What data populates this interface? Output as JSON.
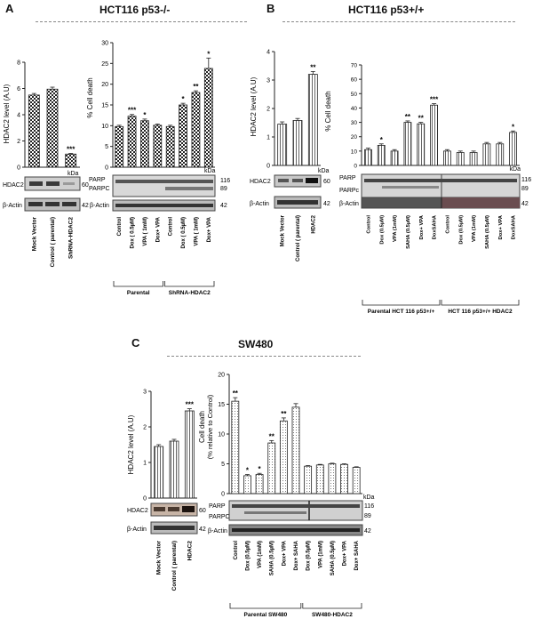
{
  "panels": {
    "A": {
      "label": "A",
      "title": "HCT116   p53-/-"
    },
    "B": {
      "label": "B",
      "title": "HCT116   p53+/+"
    },
    "C": {
      "label": "C",
      "title": "SW480"
    }
  },
  "common": {
    "kda": "kDa",
    "hdac2": "HDAC2",
    "bactin": "β-Actin",
    "parp": "PARP",
    "parpc": "PARPC",
    "parpc_b": "PARPc",
    "m60": "60",
    "m42": "42",
    "m116": "116",
    "m89": "89"
  },
  "chart_data": [
    {
      "id": "A-hdac2",
      "type": "bar",
      "ylabel": "HDAC2 level (A.U)",
      "ylim": [
        0,
        8
      ],
      "yticks": [
        "0",
        "2",
        "4",
        "6",
        "8"
      ],
      "categories": [
        "Mock Vector",
        "Control ( parental)",
        "ShRNA-HDAC2"
      ],
      "values": [
        5.5,
        5.95,
        1.0
      ],
      "errors": [
        0.12,
        0.15,
        0.05
      ],
      "annotations": [
        "",
        "",
        "***"
      ]
    },
    {
      "id": "A-death",
      "type": "bar",
      "ylabel": "% Cell death",
      "ylim": [
        0,
        30
      ],
      "yticks": [
        "0",
        "5",
        "10",
        "15",
        "20",
        "25",
        "30"
      ],
      "categories": [
        "Control",
        "Dox ( 0.5µM)",
        "VPA ( 1mM)",
        "Dox+ VPA",
        "Control",
        "Dox ( 0.5µM)",
        "VPA ( 1mM)",
        "Dox+ VPA"
      ],
      "values": [
        9.8,
        12.3,
        11.2,
        10.1,
        9.8,
        15.0,
        18.0,
        23.8
      ],
      "errors": [
        0.3,
        0.4,
        0.4,
        0.3,
        0.3,
        0.4,
        0.4,
        2.5
      ],
      "annotations": [
        "",
        "***",
        "*",
        "",
        "",
        "*",
        "**",
        "*"
      ],
      "groups": [
        "Parental",
        "ShRNA-HDAC2"
      ]
    },
    {
      "id": "B-hdac2",
      "type": "bar",
      "ylabel": "HDAC2 level (A.U)",
      "ylim": [
        0,
        4
      ],
      "yticks": [
        "0",
        "1",
        "2",
        "3",
        "4"
      ],
      "categories": [
        "Mock Vector",
        "Control ( parental)",
        "HDAC2"
      ],
      "values": [
        1.45,
        1.58,
        3.2
      ],
      "errors": [
        0.08,
        0.07,
        0.1
      ],
      "annotations": [
        "",
        "",
        "**"
      ]
    },
    {
      "id": "B-death",
      "type": "bar",
      "ylabel": "% Cell death",
      "ylim": [
        0,
        70
      ],
      "yticks": [
        "0",
        "10",
        "20",
        "30",
        "40",
        "50",
        "60",
        "70"
      ],
      "categories": [
        "Control",
        "Dox (0.5µM)",
        "VPA (1mM)",
        "SAHA (0.5µM)",
        "Dox+ VPA",
        "DoxSAHA",
        "Control",
        "Dox (0.5µM)",
        "VPA (1mM)",
        "SAHA (0.5µM)",
        "Dox+ VPA",
        "DoxSAHA"
      ],
      "values": [
        11,
        14,
        10,
        30,
        29,
        42,
        10,
        9,
        9,
        15,
        15,
        23
      ],
      "errors": [
        1,
        1,
        1,
        1,
        1,
        1,
        1,
        1,
        1,
        1,
        1,
        1
      ],
      "annotations": [
        "",
        "*",
        "",
        "**",
        "**",
        "***",
        "",
        "",
        "",
        "",
        "",
        "*"
      ],
      "groups": [
        "Parental HCT 116 p53+/+",
        "HCT 116 p53+/+ HDAC2"
      ]
    },
    {
      "id": "C-hdac2",
      "type": "bar",
      "ylabel": "HDAC2 level (A.U)",
      "ylim": [
        0,
        3
      ],
      "yticks": [
        "0",
        "1",
        "2",
        "3"
      ],
      "categories": [
        "Mock Vector",
        "Control ( parental)",
        "HDAC2"
      ],
      "values": [
        1.45,
        1.6,
        2.45
      ],
      "errors": [
        0.05,
        0.05,
        0.06
      ],
      "annotations": [
        "",
        "",
        "***"
      ]
    },
    {
      "id": "C-death",
      "type": "bar",
      "ylabel": "Cell death",
      "ylabel2": "(% relative to Control)",
      "ylim": [
        0,
        20
      ],
      "yticks": [
        "0",
        "5",
        "10",
        "15",
        "20"
      ],
      "categories": [
        "Control",
        "Dox (0.5µM)",
        "VPA (1mM)",
        "SAHA (0.5µM)",
        "Dox+ VPA",
        "Dox+ SAHA",
        "Dox (0.5µM)",
        "VPA (1mM)",
        "SAHA (0.5µM)",
        "Dox+ VPA",
        "Dox+ SAHA"
      ],
      "values": [
        15.5,
        3.0,
        3.2,
        8.5,
        12.2,
        14.5,
        4.6,
        4.8,
        5.0,
        4.9,
        4.4
      ],
      "errors": [
        0.6,
        0.2,
        0.2,
        0.4,
        0.5,
        0.6,
        0.1,
        0.1,
        0.1,
        0.1,
        0.1
      ],
      "annotations": [
        "**",
        "*",
        "*",
        "**",
        "**",
        "",
        "",
        "",
        "",
        "",
        ""
      ],
      "groups": [
        "Parental SW480",
        "SW480-HDAC2"
      ]
    }
  ]
}
